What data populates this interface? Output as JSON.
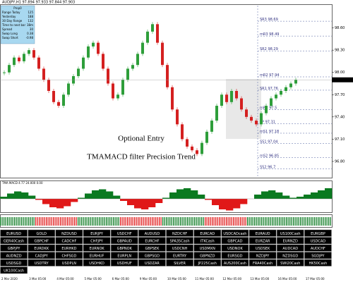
{
  "header": "AUDJPY,H1 97.894 97.933 97.844 97.903",
  "info_panel": {
    "title": "Prop0",
    "rows": [
      [
        "Range Today",
        "125"
      ],
      [
        "Yesterday",
        "188"
      ],
      [
        "30 Day Range",
        "132"
      ],
      [
        "Time to next bar",
        "38m"
      ],
      [
        "Spread",
        "30"
      ],
      [
        "Swap Long",
        "0.38"
      ],
      [
        "Swap Short",
        "-0.98"
      ]
    ]
  },
  "chart": {
    "ylim": [
      96.6,
      98.9
    ],
    "yticks": [
      {
        "value": 96.8,
        "label": "96.80"
      },
      {
        "value": 97.1,
        "label": "97.10"
      },
      {
        "value": 97.4,
        "label": "97.40"
      },
      {
        "value": 97.7,
        "label": "97.70"
      },
      {
        "value": 98.0,
        "label": "98.00"
      },
      {
        "value": 98.3,
        "label": "98.30"
      },
      {
        "value": 98.6,
        "label": "98.60"
      }
    ],
    "closes": [
      98.0,
      98.1,
      98.2,
      98.15,
      98.25,
      98.3,
      98.2,
      98.05,
      97.9,
      97.75,
      97.6,
      97.55,
      97.7,
      97.85,
      97.95,
      98.05,
      98.2,
      98.35,
      98.4,
      98.25,
      98.05,
      97.85,
      97.65,
      97.7,
      97.9,
      98.05,
      98.1,
      98.25,
      98.4,
      98.55,
      98.65,
      98.4,
      98.1,
      97.8,
      97.5,
      97.3,
      97.1,
      97.0,
      96.95,
      96.9,
      97.05,
      97.2,
      97.35,
      97.55,
      97.7,
      97.6,
      97.75,
      97.65,
      97.5,
      97.4,
      97.35,
      97.3,
      97.45,
      97.55,
      97.65,
      97.7,
      97.75,
      97.8,
      97.85,
      97.9
    ],
    "current_price": {
      "value": 97.9,
      "label": "97.90"
    },
    "pivots": [
      {
        "name": "SR3",
        "value": 98.69
      },
      {
        "name": "mR3",
        "value": 98.49
      },
      {
        "name": "SR2",
        "value": 98.29
      },
      {
        "name": "mR2",
        "value": 97.94
      },
      {
        "name": "SR1",
        "value": 97.76
      },
      {
        "name": "mR1",
        "value": 97.5
      },
      {
        "name": "PP",
        "value": 97.31
      },
      {
        "name": "mS1",
        "value": 97.18
      },
      {
        "name": "SS1",
        "value": 97.04
      },
      {
        "name": "mS2",
        "value": 96.85
      },
      {
        "name": "SS2",
        "value": 96.7
      }
    ],
    "annotations": [
      "Optional Entry",
      "TMAMACD filter Precision Trend"
    ]
  },
  "indicator": {
    "label": "TMA MACD 4.77 24.000 0.00",
    "ylim": [
      -0.6,
      0.6
    ],
    "values": [
      0.1,
      0.25,
      0.35,
      0.3,
      0.15,
      -0.05,
      -0.25,
      -0.4,
      -0.45,
      -0.35,
      -0.15,
      0.05,
      0.25,
      0.4,
      0.45,
      0.35,
      0.15,
      -0.1,
      -0.3,
      -0.45,
      -0.5,
      -0.4,
      -0.2,
      0.05,
      0.3,
      0.45,
      0.5,
      0.4,
      0.2,
      -0.05,
      -0.3,
      -0.5,
      -0.55,
      -0.45,
      -0.25,
      0.0,
      0.2,
      0.35,
      0.4,
      0.3,
      0.15,
      0.05,
      0.1,
      0.2,
      0.3,
      0.4,
      0.5
    ]
  },
  "symbols": [
    [
      "EURUSD",
      "GOLD",
      "NZDUSD",
      "EURJPY",
      "USDCHF",
      "AUDUSD",
      "NZDCHF",
      "EURCAD",
      "USDCADcash",
      "EURAUD",
      "US100Cash",
      "EURGBP"
    ],
    [
      "GER40Cash",
      "GBPCHF",
      "CADCHF",
      "CHFJPY",
      "GBPAUD",
      "EURCHF",
      "SPA35Cash",
      "ITKCash",
      "GBPCAD",
      "EURZAR",
      "EURNZD",
      "USDCAD"
    ],
    [
      "GBPJPY",
      "EURDKK",
      "EURHKD",
      "EURNOK",
      "GBPNOK",
      "GBPSEK",
      "USDCNH",
      "USDMXN",
      "USDNOK",
      "USDSEK",
      "AUDCAD",
      "AUDCHF"
    ],
    [
      "AUDNZD",
      "CADJPY",
      "CHFSGD",
      "EURHUF",
      "EURPLN",
      "GBPSGD",
      "EURTRY",
      "GBPNZD",
      "EURSGD",
      "NZDJPY",
      "NZDSGD",
      "SGDJPY"
    ],
    [
      "USDSGD",
      "USDTRY",
      "USDPLN",
      "USDHKD",
      "USDHUF",
      "USDZAR",
      "SILVER",
      "JP225Cash",
      "AUS200Cash",
      "FRA40Cash",
      "SWI20Cash",
      "HK50Cash"
    ],
    [
      "UK100Cash"
    ]
  ],
  "active_symbol": "AUDJPY",
  "dates": [
    "2 Mar 2020",
    "3 Mar 05:00",
    "4 Mar 05:00",
    "5 Mar 05:00",
    "6 Mar 05:00",
    "9 Mar 05:00",
    "10 Mar 05:00",
    "11 Mar 05:00",
    "12 Mar 05:00",
    "13 Mar 05:00",
    "16 Mar 05:00",
    "17 Mar 05:00"
  ]
}
